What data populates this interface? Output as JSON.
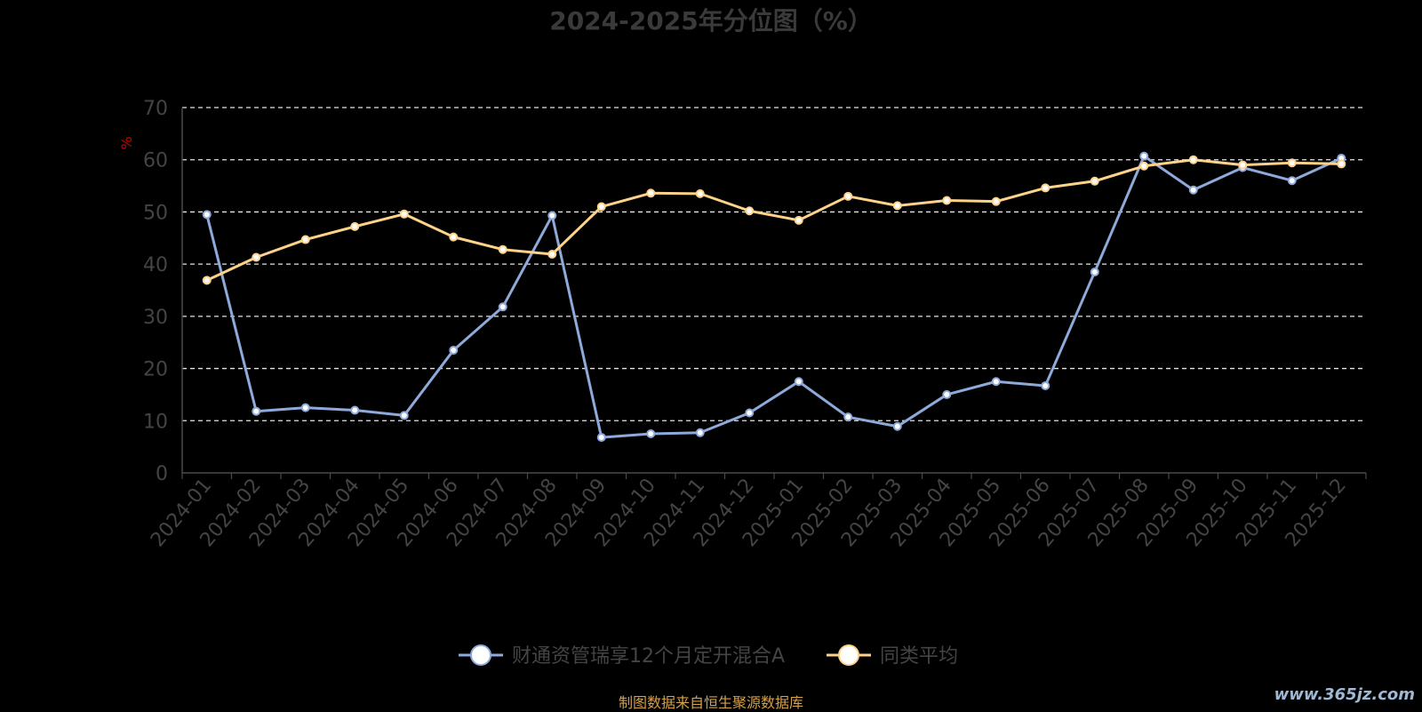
{
  "chart_data": {
    "type": "line",
    "title": "2024-2025年分位图（%）",
    "xlabel": "",
    "ylabel": "%",
    "ylim": [
      0,
      70
    ],
    "yticks": [
      0,
      10,
      20,
      30,
      40,
      50,
      60,
      70
    ],
    "grid": "horizontal dashed",
    "legend_position": "bottom-center",
    "categories": [
      "2024-01",
      "2024-02",
      "2024-03",
      "2024-04",
      "2024-05",
      "2024-06",
      "2024-07",
      "2024-08",
      "2024-09",
      "2024-10",
      "2024-11",
      "2024-12",
      "2025-01",
      "2025-02",
      "2025-03",
      "2025-04",
      "2025-05",
      "2025-06",
      "2025-07",
      "2025-08",
      "2025-09",
      "2025-10",
      "2025-11",
      "2025-12"
    ],
    "series": [
      {
        "name": "财通资管瑞享12个月定开混合A",
        "color": "#8eaadb",
        "values": [
          49.5,
          11.8,
          12.5,
          12.0,
          11.0,
          23.5,
          31.8,
          49.3,
          6.8,
          7.5,
          7.7,
          11.5,
          17.5,
          10.7,
          8.9,
          15.0,
          17.5,
          16.7,
          38.5,
          60.7,
          54.2,
          58.5,
          56.0,
          60.3
        ]
      },
      {
        "name": "同类平均",
        "color": "#ffd28a",
        "values": [
          36.9,
          41.3,
          44.7,
          47.2,
          49.6,
          45.2,
          42.8,
          41.9,
          51.0,
          53.6,
          53.5,
          50.2,
          48.4,
          53.0,
          51.2,
          52.2,
          52.0,
          54.6,
          55.9,
          58.8,
          60.0,
          59.0,
          59.4,
          59.2
        ]
      }
    ]
  },
  "footer": {
    "source": "制图数据来自恒生聚源数据库",
    "watermark": "www.365jz.com"
  }
}
